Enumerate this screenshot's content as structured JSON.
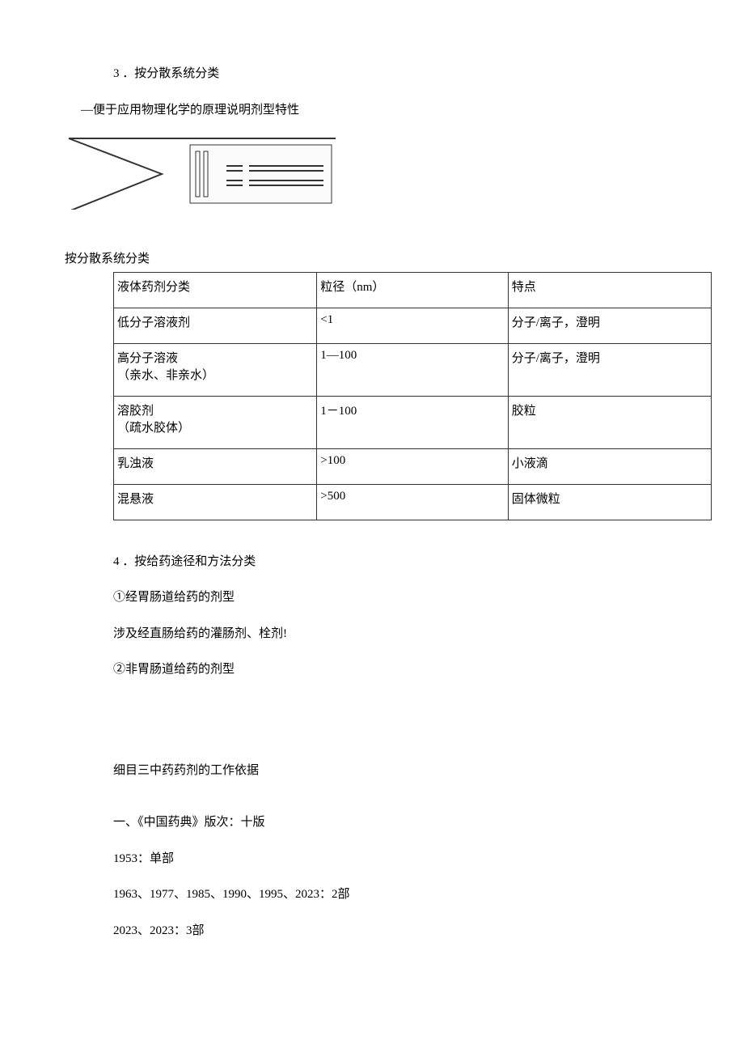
{
  "section3": {
    "heading": "3 ．按分散系统分类",
    "caption": "—便于应用物理化学的原理说明剂型特性"
  },
  "diagram": {
    "stroke": "#333333",
    "fill": "#ffffff",
    "linewidth": 1
  },
  "table": {
    "title": "按分散系统分类",
    "columns": [
      "液体药剂分类",
      "粒径（nm）",
      "特点"
    ],
    "rows": [
      [
        "低分子溶液剂",
        "<1",
        "分子/离子，澄明"
      ],
      [
        "高分子溶液\n（亲水、非亲水）",
        "1—100",
        "分子/离子，澄明"
      ],
      [
        "溶胶剂\n（疏水胶体）",
        "1－100",
        "胶粒"
      ],
      [
        "乳浊液",
        ">100",
        "小液滴"
      ],
      [
        "混悬液",
        ">500",
        "固体微粒"
      ]
    ],
    "border_color": "#333333",
    "cell_padding": 6
  },
  "section4": {
    "heading": "4 ．按给药途径和方法分类",
    "items": [
      "①经胃肠道给药的剂型",
      "涉及经直肠给药的灌肠剂、栓剂!",
      "②非胃肠道给药的剂型"
    ]
  },
  "section_ximu3": {
    "heading": "细目三中药药剂的工作依据",
    "lines": [
      "一、《中国药典》版次：十版",
      "1953：单部",
      "1963、1977、1985、1990、1995、2023：2部",
      "2023、2023：3部"
    ]
  }
}
